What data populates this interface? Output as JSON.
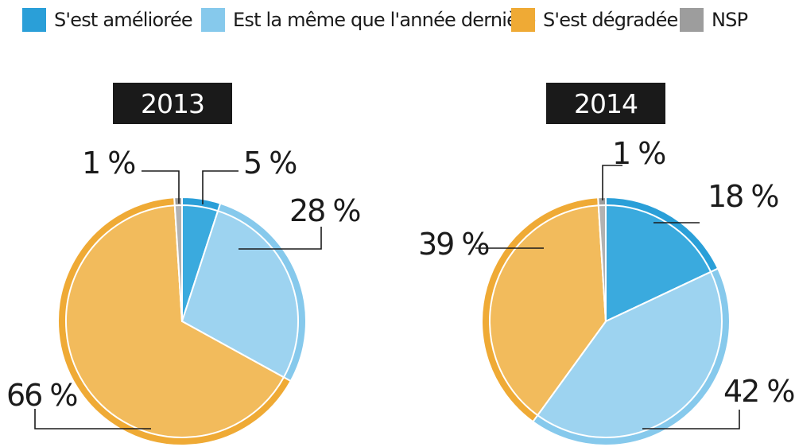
{
  "legend": [
    {
      "label": "S'est améliorée",
      "color": "#2a9fd8"
    },
    {
      "label": "Est la même que l'année dernière",
      "color": "#86c9ec"
    },
    {
      "label": "S'est dégradée",
      "color": "#efaa35"
    },
    {
      "label": "NSP",
      "color": "#9d9d9d"
    }
  ],
  "chart_data": [
    {
      "type": "pie",
      "title": "2013",
      "categories": [
        "S'est améliorée",
        "Est la même que l'année dernière",
        "S'est dégradée",
        "NSP"
      ],
      "values": [
        5,
        28,
        66,
        1
      ],
      "labels": [
        "5 %",
        "28 %",
        "66 %",
        "1 %"
      ]
    },
    {
      "type": "pie",
      "title": "2014",
      "categories": [
        "S'est améliorée",
        "Est la même que l'année dernière",
        "S'est dégradée",
        "NSP"
      ],
      "values": [
        18,
        42,
        39,
        1
      ],
      "labels": [
        "18 %",
        "42 %",
        "39 %",
        "1 %"
      ]
    }
  ]
}
